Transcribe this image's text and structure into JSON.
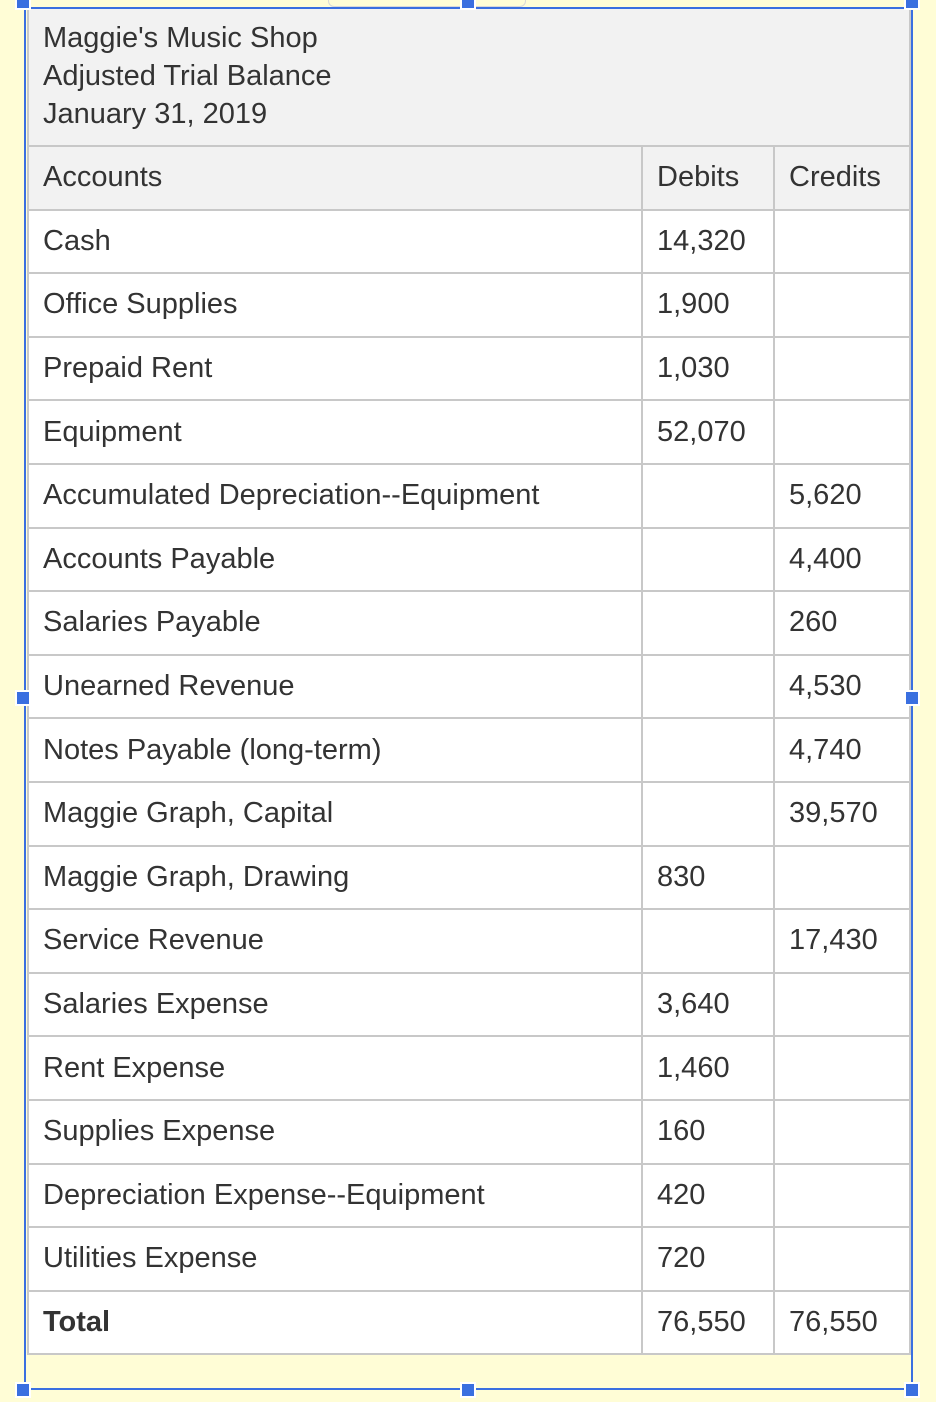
{
  "title": {
    "company": "Maggie's Music Shop",
    "report": "Adjusted Trial Balance",
    "date": "January 31, 2019"
  },
  "columns": {
    "account": "Accounts",
    "debits": "Debits",
    "credits": "Credits"
  },
  "rows": [
    {
      "account": "Cash",
      "debit": "14,320",
      "credit": ""
    },
    {
      "account": "Office Supplies",
      "debit": "1,900",
      "credit": ""
    },
    {
      "account": "Prepaid Rent",
      "debit": "1,030",
      "credit": ""
    },
    {
      "account": "Equipment",
      "debit": "52,070",
      "credit": ""
    },
    {
      "account": "Accumulated Depreciation--Equipment",
      "debit": "",
      "credit": "5,620"
    },
    {
      "account": "Accounts Payable",
      "debit": "",
      "credit": "4,400"
    },
    {
      "account": "Salaries Payable",
      "debit": "",
      "credit": "260"
    },
    {
      "account": "Unearned Revenue",
      "debit": "",
      "credit": "4,530"
    },
    {
      "account": "Notes Payable (long-term)",
      "debit": "",
      "credit": "4,740"
    },
    {
      "account": "Maggie Graph, Capital",
      "debit": "",
      "credit": "39,570"
    },
    {
      "account": "Maggie Graph, Drawing",
      "debit": "830",
      "credit": ""
    },
    {
      "account": "Service Revenue",
      "debit": "",
      "credit": "17,430"
    },
    {
      "account": "Salaries Expense",
      "debit": "3,640",
      "credit": ""
    },
    {
      "account": "Rent Expense",
      "debit": "1,460",
      "credit": ""
    },
    {
      "account": "Supplies Expense",
      "debit": "160",
      "credit": ""
    },
    {
      "account": "Depreciation Expense--Equipment",
      "debit": "420",
      "credit": ""
    },
    {
      "account": "Utilities Expense",
      "debit": "720",
      "credit": ""
    }
  ],
  "total": {
    "label": "Total",
    "debit": "76,550",
    "credit": "76,550"
  },
  "colors": {
    "page_background": "#fffdd6",
    "selection_frame": "#3a6fe0",
    "header_background": "#f2f2f2",
    "grid_line": "#c8c8c8",
    "text": "#333333"
  }
}
